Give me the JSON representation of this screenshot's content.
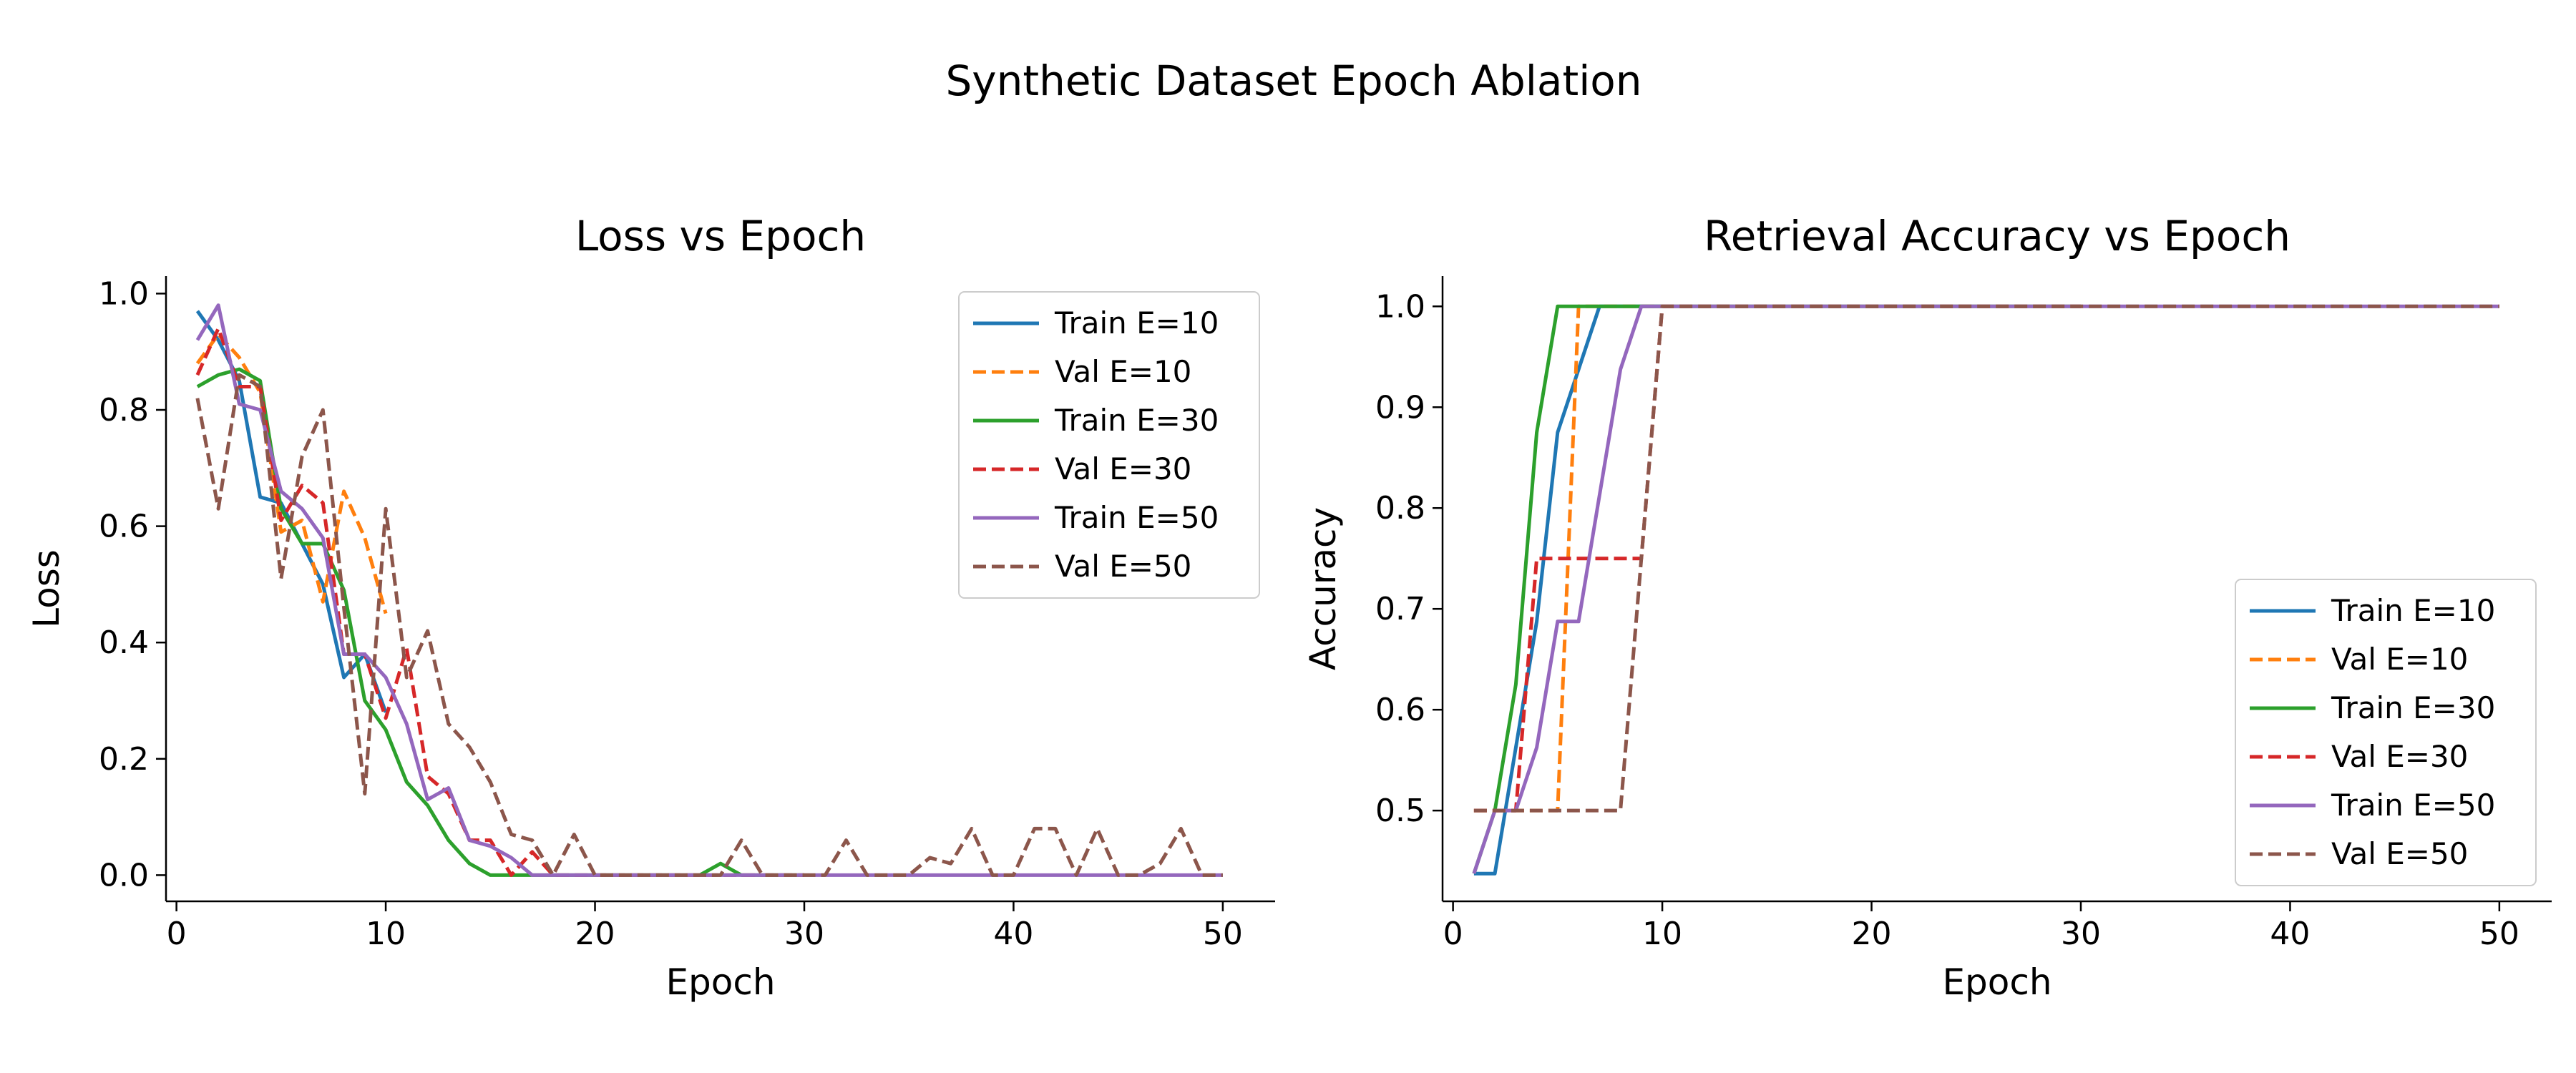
{
  "figure": {
    "title": "Synthetic Dataset Epoch Ablation"
  },
  "colors": {
    "blue": "#1f77b4",
    "orange": "#ff7f0e",
    "green": "#2ca02c",
    "red": "#d62728",
    "purple": "#9467bd",
    "brown": "#8c564b"
  },
  "chart_data": [
    {
      "type": "line",
      "title": "Loss vs Epoch",
      "xlabel": "Epoch",
      "ylabel": "Loss",
      "xlim": [
        -0.5,
        52.5
      ],
      "ylim": [
        -0.045,
        1.03
      ],
      "xticks": [
        0,
        10,
        20,
        30,
        40,
        50
      ],
      "yticks": [
        0.0,
        0.2,
        0.4,
        0.6,
        0.8,
        1.0
      ],
      "ytick_labels": [
        "0.0",
        "0.2",
        "0.4",
        "0.6",
        "0.8",
        "1.0"
      ],
      "legend_position": "upper-right",
      "series": [
        {
          "name": "Train E=10",
          "color": "#1f77b4",
          "dash": "solid",
          "x": [
            1,
            2,
            3,
            4,
            5,
            6,
            7,
            8,
            9,
            10
          ],
          "y": [
            0.97,
            0.92,
            0.85,
            0.65,
            0.64,
            0.57,
            0.5,
            0.34,
            0.38,
            0.28
          ]
        },
        {
          "name": "Val E=10",
          "color": "#ff7f0e",
          "dash": "dashed",
          "x": [
            1,
            2,
            3,
            4,
            5,
            6,
            7,
            8,
            9,
            10
          ],
          "y": [
            0.88,
            0.93,
            0.89,
            0.83,
            0.59,
            0.61,
            0.47,
            0.66,
            0.58,
            0.45
          ]
        },
        {
          "name": "Train E=30",
          "color": "#2ca02c",
          "dash": "solid",
          "x": [
            1,
            2,
            3,
            4,
            5,
            6,
            7,
            8,
            9,
            10,
            11,
            12,
            13,
            14,
            15,
            16,
            17,
            18,
            19,
            20,
            21,
            22,
            23,
            24,
            25,
            26,
            27,
            28,
            29,
            30
          ],
          "y": [
            0.84,
            0.86,
            0.87,
            0.85,
            0.63,
            0.57,
            0.57,
            0.49,
            0.3,
            0.25,
            0.16,
            0.12,
            0.06,
            0.02,
            0.0,
            0.0,
            0.0,
            0.0,
            0.0,
            0.0,
            0.0,
            0.0,
            0.0,
            0.0,
            0.0,
            0.02,
            0.0,
            0.0,
            0.0,
            0.0
          ]
        },
        {
          "name": "Val E=30",
          "color": "#d62728",
          "dash": "dashed",
          "x": [
            1,
            2,
            3,
            4,
            5,
            6,
            7,
            8,
            9,
            10,
            11,
            12,
            13,
            14,
            15,
            16,
            17,
            18,
            19,
            20,
            21,
            22,
            23,
            24,
            25,
            26,
            27,
            28,
            29,
            30
          ],
          "y": [
            0.86,
            0.94,
            0.84,
            0.84,
            0.61,
            0.67,
            0.64,
            0.38,
            0.38,
            0.27,
            0.39,
            0.17,
            0.14,
            0.06,
            0.06,
            0.0,
            0.04,
            0.0,
            0.0,
            0.0,
            0.0,
            0.0,
            0.0,
            0.0,
            0.0,
            0.0,
            0.0,
            0.0,
            0.0,
            0.0
          ]
        },
        {
          "name": "Train E=50",
          "color": "#9467bd",
          "dash": "solid",
          "x": [
            1,
            2,
            3,
            4,
            5,
            6,
            7,
            8,
            9,
            10,
            11,
            12,
            13,
            14,
            15,
            16,
            17,
            18,
            19,
            20,
            21,
            22,
            23,
            24,
            25,
            26,
            27,
            28,
            29,
            30,
            31,
            32,
            33,
            34,
            35,
            36,
            37,
            38,
            39,
            40,
            41,
            42,
            43,
            44,
            45,
            46,
            47,
            48,
            49,
            50
          ],
          "y": [
            0.92,
            0.98,
            0.81,
            0.8,
            0.66,
            0.63,
            0.58,
            0.38,
            0.38,
            0.34,
            0.26,
            0.13,
            0.15,
            0.06,
            0.05,
            0.03,
            0.0,
            0.0,
            0.0,
            0.0,
            0.0,
            0.0,
            0.0,
            0.0,
            0.0,
            0.0,
            0.0,
            0.0,
            0.0,
            0.0,
            0.0,
            0.0,
            0.0,
            0.0,
            0.0,
            0.0,
            0.0,
            0.0,
            0.0,
            0.0,
            0.0,
            0.0,
            0.0,
            0.0,
            0.0,
            0.0,
            0.0,
            0.0,
            0.0,
            0.0
          ]
        },
        {
          "name": "Val E=50",
          "color": "#8c564b",
          "dash": "dashed",
          "x": [
            1,
            2,
            3,
            4,
            5,
            6,
            7,
            8,
            9,
            10,
            11,
            12,
            13,
            14,
            15,
            16,
            17,
            18,
            19,
            20,
            21,
            22,
            23,
            24,
            25,
            26,
            27,
            28,
            29,
            30,
            31,
            32,
            33,
            34,
            35,
            36,
            37,
            38,
            39,
            40,
            41,
            42,
            43,
            44,
            45,
            46,
            47,
            48,
            49,
            50
          ],
          "y": [
            0.82,
            0.63,
            0.86,
            0.84,
            0.51,
            0.72,
            0.8,
            0.46,
            0.14,
            0.63,
            0.34,
            0.42,
            0.26,
            0.22,
            0.16,
            0.07,
            0.06,
            0.0,
            0.07,
            0.0,
            0.0,
            0.0,
            0.0,
            0.0,
            0.0,
            0.0,
            0.06,
            0.0,
            0.0,
            0.0,
            0.0,
            0.06,
            0.0,
            0.0,
            0.0,
            0.03,
            0.02,
            0.08,
            0.0,
            0.0,
            0.08,
            0.08,
            0.0,
            0.08,
            0.0,
            0.0,
            0.02,
            0.08,
            0.0,
            0.0
          ]
        }
      ]
    },
    {
      "type": "line",
      "title": "Retrieval Accuracy vs Epoch",
      "xlabel": "Epoch",
      "ylabel": "Accuracy",
      "xlim": [
        -0.5,
        52.5
      ],
      "ylim": [
        0.41,
        1.03
      ],
      "xticks": [
        0,
        10,
        20,
        30,
        40,
        50
      ],
      "yticks": [
        0.5,
        0.6,
        0.7,
        0.8,
        0.9,
        1.0
      ],
      "ytick_labels": [
        "0.5",
        "0.6",
        "0.7",
        "0.8",
        "0.9",
        "1.0"
      ],
      "legend_position": "lower-right",
      "series": [
        {
          "name": "Train E=10",
          "color": "#1f77b4",
          "dash": "solid",
          "x": [
            1,
            2,
            3,
            4,
            5,
            6,
            7,
            8,
            9,
            10
          ],
          "y": [
            0.4375,
            0.4375,
            0.5625,
            0.6875,
            0.875,
            0.9375,
            1.0,
            1.0,
            1.0,
            1.0
          ]
        },
        {
          "name": "Val E=10",
          "color": "#ff7f0e",
          "dash": "dashed",
          "x": [
            1,
            2,
            3,
            4,
            5,
            6,
            7,
            8,
            9,
            10
          ],
          "y": [
            0.5,
            0.5,
            0.5,
            0.5,
            0.5,
            1.0,
            1.0,
            1.0,
            1.0,
            1.0
          ]
        },
        {
          "name": "Train E=30",
          "color": "#2ca02c",
          "dash": "solid",
          "x": [
            1,
            2,
            3,
            4,
            5,
            6,
            7,
            8,
            9,
            10,
            11,
            12,
            13,
            14,
            15,
            16,
            17,
            18,
            19,
            20,
            21,
            22,
            23,
            24,
            25,
            26,
            27,
            28,
            29,
            30
          ],
          "y": [
            0.4375,
            0.5,
            0.625,
            0.875,
            1.0,
            1.0,
            1.0,
            1.0,
            1.0,
            1.0,
            1.0,
            1.0,
            1.0,
            1.0,
            1.0,
            1.0,
            1.0,
            1.0,
            1.0,
            1.0,
            1.0,
            1.0,
            1.0,
            1.0,
            1.0,
            1.0,
            1.0,
            1.0,
            1.0,
            1.0
          ]
        },
        {
          "name": "Val E=30",
          "color": "#d62728",
          "dash": "dashed",
          "x": [
            1,
            2,
            3,
            4,
            5,
            6,
            7,
            8,
            9,
            10,
            11,
            12,
            13,
            14,
            15,
            16,
            17,
            18,
            19,
            20,
            21,
            22,
            23,
            24,
            25,
            26,
            27,
            28,
            29,
            30
          ],
          "y": [
            0.5,
            0.5,
            0.5,
            0.75,
            0.75,
            0.75,
            0.75,
            0.75,
            0.75,
            1.0,
            1.0,
            1.0,
            1.0,
            1.0,
            1.0,
            1.0,
            1.0,
            1.0,
            1.0,
            1.0,
            1.0,
            1.0,
            1.0,
            1.0,
            1.0,
            1.0,
            1.0,
            1.0,
            1.0,
            1.0
          ]
        },
        {
          "name": "Train E=50",
          "color": "#9467bd",
          "dash": "solid",
          "x": [
            1,
            2,
            3,
            4,
            5,
            6,
            7,
            8,
            9,
            10,
            11,
            12,
            13,
            14,
            15,
            16,
            17,
            18,
            19,
            20,
            21,
            22,
            23,
            24,
            25,
            26,
            27,
            28,
            29,
            30,
            31,
            32,
            33,
            34,
            35,
            36,
            37,
            38,
            39,
            40,
            41,
            42,
            43,
            44,
            45,
            46,
            47,
            48,
            49,
            50
          ],
          "y": [
            0.4375,
            0.5,
            0.5,
            0.5625,
            0.6875,
            0.6875,
            0.8125,
            0.9375,
            1.0,
            1.0,
            1.0,
            1.0,
            1.0,
            1.0,
            1.0,
            1.0,
            1.0,
            1.0,
            1.0,
            1.0,
            1.0,
            1.0,
            1.0,
            1.0,
            1.0,
            1.0,
            1.0,
            1.0,
            1.0,
            1.0,
            1.0,
            1.0,
            1.0,
            1.0,
            1.0,
            1.0,
            1.0,
            1.0,
            1.0,
            1.0,
            1.0,
            1.0,
            1.0,
            1.0,
            1.0,
            1.0,
            1.0,
            1.0,
            1.0,
            1.0
          ]
        },
        {
          "name": "Val E=50",
          "color": "#8c564b",
          "dash": "dashed",
          "x": [
            1,
            2,
            3,
            4,
            5,
            6,
            7,
            8,
            9,
            10,
            11,
            12,
            13,
            14,
            15,
            16,
            17,
            18,
            19,
            20,
            21,
            22,
            23,
            24,
            25,
            26,
            27,
            28,
            29,
            30,
            31,
            32,
            33,
            34,
            35,
            36,
            37,
            38,
            39,
            40,
            41,
            42,
            43,
            44,
            45,
            46,
            47,
            48,
            49,
            50
          ],
          "y": [
            0.5,
            0.5,
            0.5,
            0.5,
            0.5,
            0.5,
            0.5,
            0.5,
            0.75,
            1.0,
            1.0,
            1.0,
            1.0,
            1.0,
            1.0,
            1.0,
            1.0,
            1.0,
            1.0,
            1.0,
            1.0,
            1.0,
            1.0,
            1.0,
            1.0,
            1.0,
            1.0,
            1.0,
            1.0,
            1.0,
            1.0,
            1.0,
            1.0,
            1.0,
            1.0,
            1.0,
            1.0,
            1.0,
            1.0,
            1.0,
            1.0,
            1.0,
            1.0,
            1.0,
            1.0,
            1.0,
            1.0,
            1.0,
            1.0,
            1.0
          ]
        }
      ]
    }
  ]
}
